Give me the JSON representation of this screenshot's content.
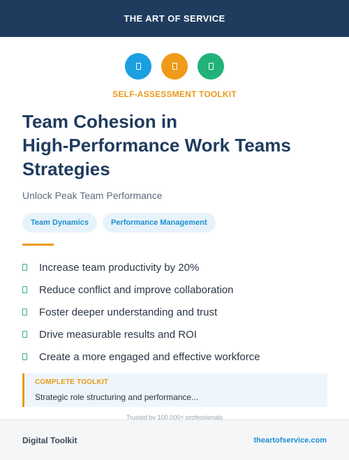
{
  "header": {
    "brand": "THE ART OF SERVICE"
  },
  "icons": [
    {
      "name": "blue-icon",
      "color": "#1a9fe0"
    },
    {
      "name": "orange-icon",
      "color": "#ef9a1a"
    },
    {
      "name": "green-icon",
      "color": "#21b27a"
    }
  ],
  "kicker": "SELF-ASSESSMENT TOOLKIT",
  "title": {
    "line1": "Team Cohesion in",
    "line2": "High-Performance Work Teams",
    "line3": "Strategies"
  },
  "subtitle": "Unlock Peak Team Performance",
  "tags": [
    "Team Dynamics",
    "Performance Management"
  ],
  "benefits": [
    "Increase team productivity by 20%",
    "Reduce conflict and improve collaboration",
    "Foster deeper understanding and trust",
    "Drive measurable results and ROI",
    "Create a more engaged and effective workforce"
  ],
  "callout": {
    "label": "COMPLETE TOOLKIT",
    "text": "Strategic role structuring and performance..."
  },
  "trust": "Trusted by 100,000+ professionals",
  "footer": {
    "left": "Digital Toolkit",
    "right": "theartofservice.com"
  },
  "colors": {
    "navy": "#1f3b5e",
    "accent": "#e89a1a",
    "link": "#1f8fd0",
    "check": "#2fb27a"
  }
}
